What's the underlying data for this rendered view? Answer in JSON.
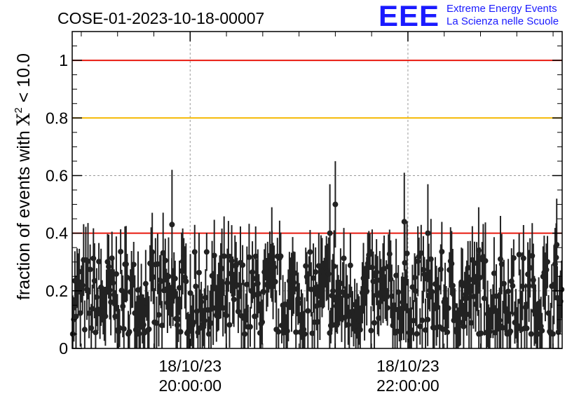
{
  "header": {
    "title": "COSE-01-2023-10-18-00007",
    "logo_letters": "EEE",
    "logo_line1": "Extreme Energy Events",
    "logo_line2": "La Scienza nelle Scuole"
  },
  "chart_data": {
    "type": "scatter",
    "title": "COSE-01-2023-10-18-00007",
    "ylabel_prefix": "fraction of events with ",
    "ylabel_symbol": "X",
    "ylabel_sup": "2",
    "ylabel_suffix": " < 10.0",
    "ylim": [
      0,
      1.1
    ],
    "y_ticks": [
      "0",
      "0.2",
      "0.4",
      "0.6",
      "0.8",
      "1"
    ],
    "y_tick_values": [
      0,
      0.2,
      0.4,
      0.6,
      0.8,
      1.0
    ],
    "xlim": [
      "18/10/23 18:55:00",
      "18/10/23 23:25:00"
    ],
    "x_ticks": [
      {
        "value": "18/10/23 20:00:00",
        "date": "18/10/23",
        "time": "20:00:00"
      },
      {
        "value": "18/10/23 22:00:00",
        "date": "18/10/23",
        "time": "22:00:00"
      }
    ],
    "grid": true,
    "reference_lines": [
      {
        "y": 1.0,
        "color": "#e8190f"
      },
      {
        "y": 0.8,
        "color": "#f5b800"
      },
      {
        "y": 0.4,
        "color": "#e8190f"
      }
    ],
    "marker_color": "#222222",
    "notable_points": [
      {
        "x": "18/10/23 19:50:00",
        "y": 0.43,
        "err": 0.19
      },
      {
        "x": "18/10/23 20:45:00",
        "y": 0.33,
        "err": 0.16
      },
      {
        "x": "18/10/23 21:17:00",
        "y": 0.4,
        "err": 0.17
      },
      {
        "x": "18/10/23 21:20:00",
        "y": 0.5,
        "err": 0.15
      },
      {
        "x": "18/10/23 21:58:00",
        "y": 0.44,
        "err": 0.17
      },
      {
        "x": "18/10/23 22:11:00",
        "y": 0.4,
        "err": 0.17
      },
      {
        "x": "18/10/23 22:39:00",
        "y": 0.34,
        "err": 0.15
      },
      {
        "x": "18/10/23 22:51:00",
        "y": 0.31,
        "err": 0.15
      },
      {
        "x": "18/10/23 23:22:00",
        "y": 0.36,
        "err": 0.16
      }
    ],
    "typical_y_range": [
      0.05,
      0.3
    ],
    "typical_err": 0.1
  }
}
